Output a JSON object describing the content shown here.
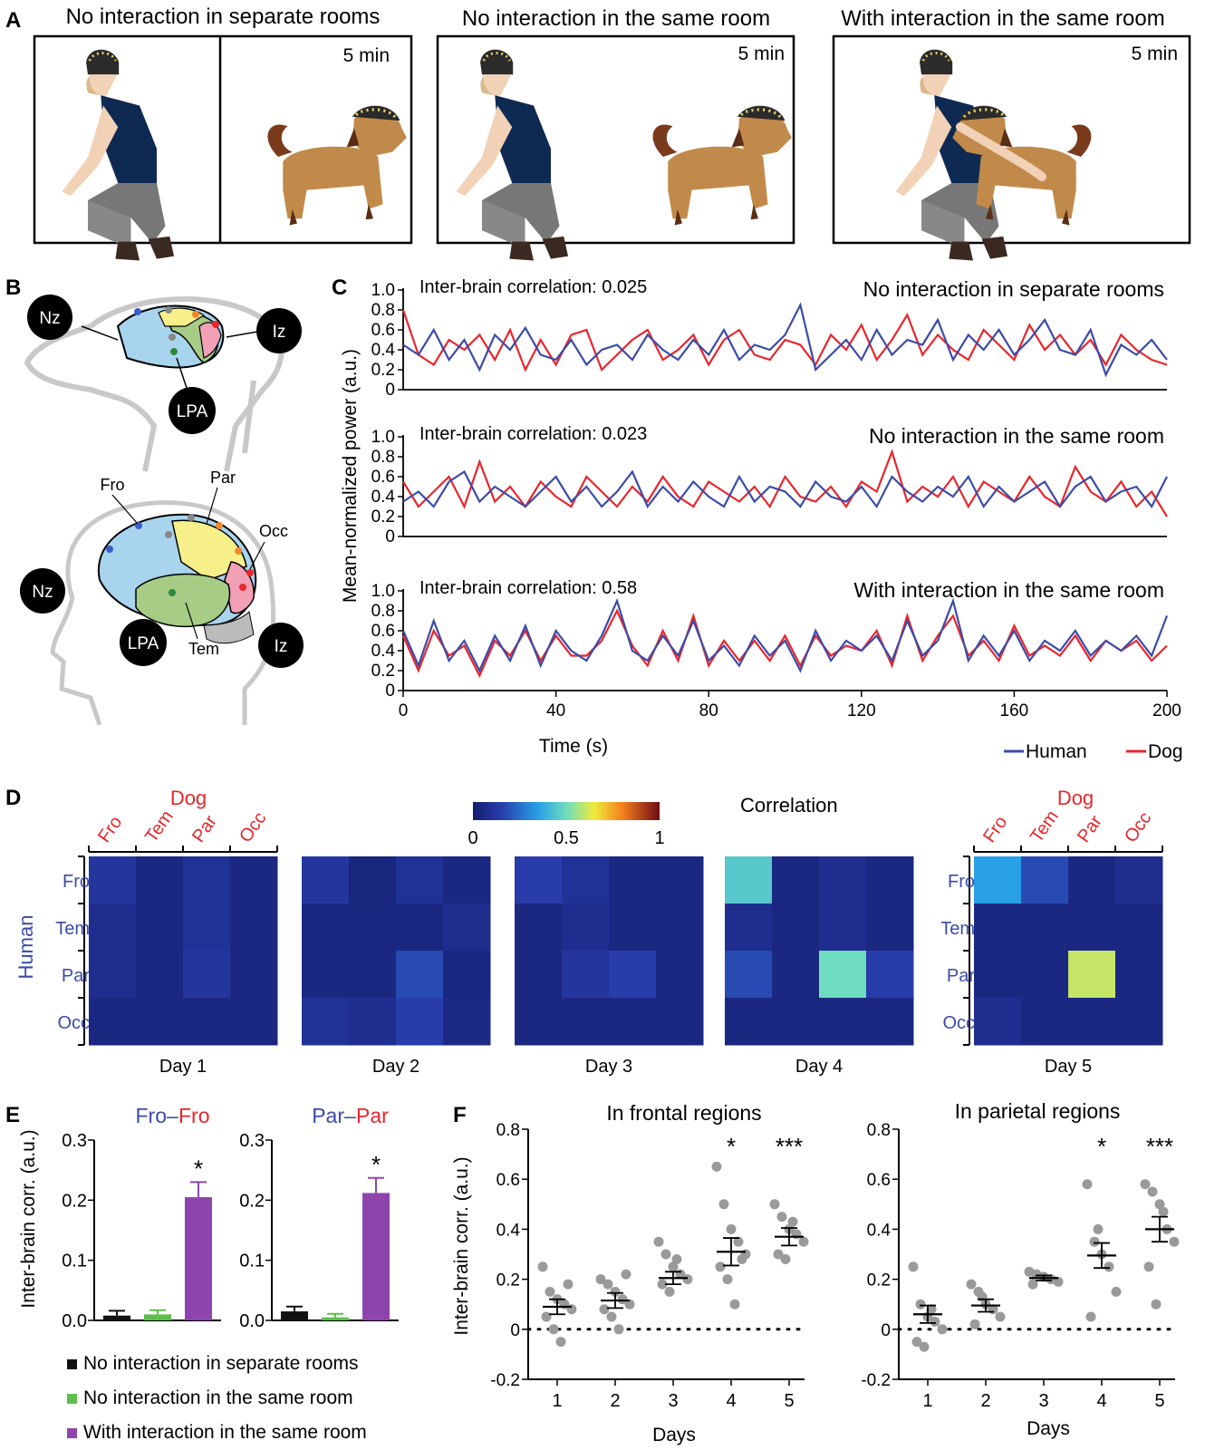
{
  "panel_labels": [
    "A",
    "B",
    "C",
    "D",
    "E",
    "F"
  ],
  "panel_a": {
    "titles": [
      "No interaction in separate rooms",
      "No interaction in the same room",
      "With interaction in the same room"
    ],
    "duration_labels": [
      "5 min",
      "5 min",
      "5 min"
    ]
  },
  "panel_b": {
    "dog_markers": [
      "Nz",
      "Iz",
      "LPA"
    ],
    "human_markers": [
      "Nz",
      "LPA",
      "Iz"
    ],
    "regions": [
      "Fro",
      "Par",
      "Occ",
      "Tem"
    ]
  },
  "colors": {
    "human": "#3b4ba8",
    "dog": "#e8262c",
    "frontal": "#a9d4ee",
    "parietal": "#f7f08a",
    "temporal": "#a7cc86",
    "occipital": "#f2a0b6",
    "bar_sep": "#111111",
    "bar_same": "#5cbf4a",
    "bar_int": "#8e44ad",
    "dots": "#9a9a9a"
  },
  "chart_data": [
    {
      "type": "line",
      "panel": "C",
      "ylabel": "Mean-normalized power (a.u.)",
      "xlabel": "Time (s)",
      "xlim": [
        0,
        200
      ],
      "ylim": [
        0,
        1.0
      ],
      "x_ticks": [
        "0",
        "40",
        "80",
        "120",
        "160",
        "200"
      ],
      "y_ticks": [
        "0",
        "0.2",
        "0.4",
        "0.6",
        "0.8",
        "1.0"
      ],
      "legend": [
        "Human",
        "Dog"
      ],
      "legend_position": "bottom-right",
      "subplots": [
        {
          "condition": "No interaction in separate rooms",
          "annotation": "Inter-brain correlation: 0.025",
          "x": [
            0,
            4,
            8,
            12,
            16,
            20,
            24,
            28,
            32,
            36,
            40,
            44,
            48,
            52,
            56,
            60,
            64,
            68,
            72,
            76,
            80,
            84,
            88,
            92,
            96,
            100,
            104,
            108,
            112,
            116,
            120,
            124,
            128,
            132,
            136,
            140,
            144,
            148,
            152,
            156,
            160,
            164,
            168,
            172,
            176,
            180,
            184,
            188,
            192,
            196,
            200
          ],
          "human": [
            0.45,
            0.35,
            0.6,
            0.3,
            0.5,
            0.2,
            0.55,
            0.4,
            0.62,
            0.35,
            0.3,
            0.5,
            0.25,
            0.4,
            0.45,
            0.3,
            0.55,
            0.4,
            0.3,
            0.5,
            0.35,
            0.6,
            0.3,
            0.45,
            0.4,
            0.55,
            0.85,
            0.2,
            0.35,
            0.5,
            0.3,
            0.6,
            0.35,
            0.5,
            0.45,
            0.7,
            0.3,
            0.55,
            0.4,
            0.6,
            0.35,
            0.5,
            0.7,
            0.4,
            0.35,
            0.6,
            0.15,
            0.45,
            0.35,
            0.5,
            0.3
          ],
          "dog": [
            0.8,
            0.35,
            0.25,
            0.5,
            0.4,
            0.55,
            0.3,
            0.6,
            0.2,
            0.5,
            0.25,
            0.55,
            0.6,
            0.2,
            0.35,
            0.5,
            0.6,
            0.3,
            0.4,
            0.55,
            0.25,
            0.5,
            0.6,
            0.35,
            0.3,
            0.5,
            0.45,
            0.25,
            0.55,
            0.4,
            0.65,
            0.3,
            0.5,
            0.75,
            0.35,
            0.55,
            0.4,
            0.3,
            0.6,
            0.45,
            0.3,
            0.65,
            0.4,
            0.55,
            0.35,
            0.5,
            0.25,
            0.55,
            0.4,
            0.3,
            0.25
          ]
        },
        {
          "condition": "No interaction in the same room",
          "annotation": "Inter-brain correlation: 0.023",
          "x": [
            0,
            4,
            8,
            12,
            16,
            20,
            24,
            28,
            32,
            36,
            40,
            44,
            48,
            52,
            56,
            60,
            64,
            68,
            72,
            76,
            80,
            84,
            88,
            92,
            96,
            100,
            104,
            108,
            112,
            116,
            120,
            124,
            128,
            132,
            136,
            140,
            144,
            148,
            152,
            156,
            160,
            164,
            168,
            172,
            176,
            180,
            184,
            188,
            192,
            196,
            200
          ],
          "human": [
            0.35,
            0.45,
            0.3,
            0.55,
            0.65,
            0.35,
            0.5,
            0.4,
            0.3,
            0.45,
            0.6,
            0.35,
            0.5,
            0.3,
            0.45,
            0.65,
            0.3,
            0.5,
            0.35,
            0.55,
            0.4,
            0.3,
            0.6,
            0.35,
            0.5,
            0.45,
            0.3,
            0.55,
            0.4,
            0.35,
            0.5,
            0.3,
            0.6,
            0.45,
            0.35,
            0.5,
            0.4,
            0.6,
            0.3,
            0.5,
            0.35,
            0.45,
            0.55,
            0.3,
            0.5,
            0.6,
            0.35,
            0.45,
            0.5,
            0.3,
            0.6
          ],
          "dog": [
            0.55,
            0.3,
            0.45,
            0.6,
            0.3,
            0.75,
            0.35,
            0.5,
            0.3,
            0.55,
            0.4,
            0.3,
            0.6,
            0.45,
            0.3,
            0.5,
            0.35,
            0.6,
            0.4,
            0.3,
            0.55,
            0.45,
            0.35,
            0.5,
            0.3,
            0.6,
            0.4,
            0.35,
            0.5,
            0.3,
            0.55,
            0.45,
            0.85,
            0.35,
            0.5,
            0.4,
            0.6,
            0.3,
            0.55,
            0.45,
            0.35,
            0.6,
            0.4,
            0.3,
            0.7,
            0.45,
            0.35,
            0.55,
            0.3,
            0.45,
            0.2
          ]
        },
        {
          "condition": "With interaction in the same room",
          "annotation": "Inter-brain correlation: 0.58",
          "x": [
            0,
            4,
            8,
            12,
            16,
            20,
            24,
            28,
            32,
            36,
            40,
            44,
            48,
            52,
            56,
            60,
            64,
            68,
            72,
            76,
            80,
            84,
            88,
            92,
            96,
            100,
            104,
            108,
            112,
            116,
            120,
            124,
            128,
            132,
            136,
            140,
            144,
            148,
            152,
            156,
            160,
            164,
            168,
            172,
            176,
            180,
            184,
            188,
            192,
            196,
            200
          ],
          "human": [
            0.6,
            0.25,
            0.7,
            0.3,
            0.5,
            0.2,
            0.55,
            0.3,
            0.65,
            0.25,
            0.6,
            0.4,
            0.3,
            0.55,
            0.9,
            0.4,
            0.3,
            0.55,
            0.35,
            0.7,
            0.3,
            0.45,
            0.25,
            0.55,
            0.35,
            0.5,
            0.2,
            0.6,
            0.3,
            0.5,
            0.4,
            0.55,
            0.3,
            0.7,
            0.35,
            0.5,
            0.9,
            0.3,
            0.55,
            0.35,
            0.6,
            0.3,
            0.5,
            0.4,
            0.6,
            0.35,
            0.5,
            0.4,
            0.55,
            0.35,
            0.75
          ],
          "dog": [
            0.55,
            0.2,
            0.6,
            0.35,
            0.45,
            0.15,
            0.5,
            0.35,
            0.6,
            0.3,
            0.55,
            0.35,
            0.35,
            0.5,
            0.8,
            0.45,
            0.25,
            0.6,
            0.3,
            0.75,
            0.25,
            0.5,
            0.3,
            0.5,
            0.3,
            0.55,
            0.25,
            0.55,
            0.35,
            0.45,
            0.4,
            0.6,
            0.25,
            0.75,
            0.3,
            0.55,
            0.75,
            0.35,
            0.5,
            0.3,
            0.65,
            0.35,
            0.45,
            0.35,
            0.55,
            0.3,
            0.5,
            0.4,
            0.5,
            0.3,
            0.45
          ]
        }
      ]
    },
    {
      "type": "heatmap",
      "panel": "D",
      "title": "Correlation",
      "colorbar_ticks": [
        "0",
        "0.5",
        "1"
      ],
      "dog_label": "Dog",
      "human_label": "Human",
      "dog_regions": [
        "Fro",
        "Tem",
        "Par",
        "Occ"
      ],
      "human_regions": [
        "Fro",
        "Tem",
        "Par",
        "Occ"
      ],
      "days": [
        "Day 1",
        "Day 2",
        "Day 3",
        "Day 4",
        "Day 5"
      ],
      "matrices": [
        [
          [
            0.12,
            0.05,
            0.1,
            0.05
          ],
          [
            0.08,
            0.05,
            0.1,
            0.05
          ],
          [
            0.08,
            0.05,
            0.12,
            0.05
          ],
          [
            0.05,
            0.05,
            0.05,
            0.05
          ]
        ],
        [
          [
            0.12,
            0.04,
            0.1,
            0.05
          ],
          [
            0.05,
            0.05,
            0.05,
            0.08
          ],
          [
            0.05,
            0.05,
            0.18,
            0.05
          ],
          [
            0.1,
            0.08,
            0.15,
            0.06
          ]
        ],
        [
          [
            0.15,
            0.1,
            0.05,
            0.05
          ],
          [
            0.05,
            0.08,
            0.05,
            0.05
          ],
          [
            0.05,
            0.12,
            0.15,
            0.05
          ],
          [
            0.05,
            0.05,
            0.05,
            0.05
          ]
        ],
        [
          [
            0.45,
            0.05,
            0.08,
            0.05
          ],
          [
            0.08,
            0.05,
            0.08,
            0.05
          ],
          [
            0.18,
            0.05,
            0.5,
            0.15
          ],
          [
            0.05,
            0.05,
            0.05,
            0.05
          ]
        ],
        [
          [
            0.35,
            0.18,
            0.05,
            0.08
          ],
          [
            0.05,
            0.05,
            0.05,
            0.05
          ],
          [
            0.05,
            0.05,
            0.6,
            0.05
          ],
          [
            0.08,
            0.05,
            0.05,
            0.05
          ]
        ]
      ]
    },
    {
      "type": "bar",
      "panel": "E",
      "ylabel": "Inter-brain corr. (a.u.)",
      "ylim": [
        0,
        0.3
      ],
      "y_ticks": [
        "0.0",
        "0.1",
        "0.2",
        "0.3"
      ],
      "legend": [
        "No interaction in separate rooms",
        "No interaction in the same room",
        "With interaction in the same room"
      ],
      "subplots": [
        {
          "title_human": "Fro",
          "title_sep": "–",
          "title_dog": "Fro",
          "values": [
            0.008,
            0.01,
            0.205
          ],
          "errors": [
            0.008,
            0.007,
            0.025
          ],
          "significance": [
            "",
            "",
            "*"
          ]
        },
        {
          "title_human": "Par",
          "title_sep": "–",
          "title_dog": "Par",
          "values": [
            0.015,
            0.005,
            0.212
          ],
          "errors": [
            0.008,
            0.006,
            0.025
          ],
          "significance": [
            "",
            "",
            "*"
          ]
        }
      ]
    },
    {
      "type": "scatter",
      "panel": "F",
      "ylabel": "Inter-brain corr. (a.u.)",
      "xlabel": "Days",
      "categories": [
        "1",
        "2",
        "3",
        "4",
        "5"
      ],
      "ylim": [
        -0.2,
        0.8
      ],
      "y_ticks": [
        "-0.2",
        "0",
        "0.2",
        "0.4",
        "0.6",
        "0.8"
      ],
      "subplots": [
        {
          "title": "In frontal regions",
          "significance": [
            "",
            "",
            "",
            "*",
            "***"
          ],
          "means": [
            0.09,
            0.115,
            0.205,
            0.31,
            0.37
          ],
          "sem": [
            0.03,
            0.03,
            0.025,
            0.055,
            0.035
          ],
          "points": [
            [
              0.25,
              0.15,
              0.12,
              0.1,
              0.08,
              0.05,
              0.0,
              -0.05,
              0.18
            ],
            [
              0.2,
              0.18,
              0.15,
              0.12,
              0.1,
              0.08,
              0.05,
              0.0,
              0.22
            ],
            [
              0.35,
              0.3,
              0.25,
              0.22,
              0.2,
              0.18,
              0.15,
              0.28
            ],
            [
              0.65,
              0.5,
              0.4,
              0.35,
              0.3,
              0.25,
              0.2,
              0.1,
              0.28
            ],
            [
              0.5,
              0.45,
              0.4,
              0.38,
              0.35,
              0.3,
              0.28,
              0.43
            ]
          ]
        },
        {
          "title": "In parietal regions",
          "significance": [
            "",
            "",
            "",
            "*",
            "***"
          ],
          "means": [
            0.06,
            0.095,
            0.205,
            0.295,
            0.4
          ],
          "sem": [
            0.035,
            0.025,
            0.01,
            0.05,
            0.05
          ],
          "points": [
            [
              0.25,
              0.1,
              0.05,
              0.03,
              0.0,
              -0.05,
              -0.07,
              0.08
            ],
            [
              0.18,
              0.15,
              0.1,
              0.08,
              0.05,
              0.02,
              0.13
            ],
            [
              0.23,
              0.22,
              0.21,
              0.2,
              0.19,
              0.18
            ],
            [
              0.58,
              0.35,
              0.3,
              0.25,
              0.15,
              0.05,
              0.4
            ],
            [
              0.58,
              0.55,
              0.5,
              0.4,
              0.35,
              0.25,
              0.1,
              0.47
            ]
          ]
        }
      ]
    }
  ]
}
